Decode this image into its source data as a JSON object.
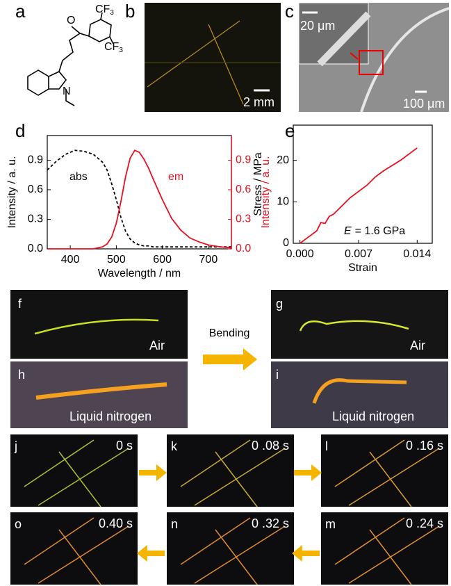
{
  "panels": {
    "a": {
      "label": "a",
      "group": "CF",
      "subscript": "3",
      "oxygen": "O",
      "nitrogen": "N"
    },
    "b": {
      "label": "b",
      "scale": "2 mm"
    },
    "c": {
      "label": "c",
      "inset_scale": "20 μm",
      "scale": "100 μm"
    },
    "d": {
      "label": "d"
    },
    "e": {
      "label": "e"
    },
    "f": {
      "label": "f",
      "text": "Air"
    },
    "g": {
      "label": "g",
      "text": "Air"
    },
    "h": {
      "label": "h",
      "text": "Liquid nitrogen"
    },
    "i": {
      "label": "i",
      "text": "Liquid nitrogen"
    },
    "bending": "Bending",
    "j": {
      "label": "j",
      "time": "0 s"
    },
    "k": {
      "label": "k",
      "time": "0 .08 s"
    },
    "l": {
      "label": "l",
      "time": "0 .16 s"
    },
    "m": {
      "label": "m",
      "time": "0 .24 s"
    },
    "n": {
      "label": "n",
      "time": "0 .32 s"
    },
    "o": {
      "label": "o",
      "time": "0.40 s"
    }
  },
  "chart_data": [
    {
      "type": "line",
      "xlabel": "Wavelength / nm",
      "ylabel": "Intensity / a. u.",
      "y2label": "Intensity / a. u.",
      "y2color": "#e8101e",
      "x": [
        350,
        370,
        390,
        410,
        430,
        450,
        470,
        480,
        490,
        500,
        510,
        520,
        530,
        540,
        550,
        560,
        570,
        580,
        600,
        620,
        640,
        660,
        680,
        700,
        725,
        750
      ],
      "series": [
        {
          "name": "abs",
          "color": "#000000",
          "dash": true,
          "values": [
            0.8,
            0.89,
            0.96,
            1.0,
            0.99,
            0.96,
            0.88,
            0.8,
            0.66,
            0.5,
            0.32,
            0.18,
            0.1,
            0.06,
            0.04,
            0.03,
            0.03,
            0.02,
            0.02,
            0.02,
            0.02,
            0.02,
            0.02,
            0.02,
            0.02,
            0.02
          ]
        },
        {
          "name": "em",
          "color": "#e8101e",
          "axis": "y2",
          "values": [
            0,
            0,
            0,
            0,
            0,
            0,
            0.02,
            0.05,
            0.12,
            0.26,
            0.48,
            0.73,
            0.92,
            1.0,
            0.98,
            0.91,
            0.82,
            0.71,
            0.5,
            0.31,
            0.19,
            0.11,
            0.07,
            0.04,
            0.02,
            0.01
          ]
        }
      ],
      "xlim": [
        350,
        750
      ],
      "xticks": [
        400,
        500,
        600,
        700
      ],
      "ylim": [
        0,
        1.15
      ],
      "yticks": [
        {
          "value": 0,
          "label": "0.0"
        },
        0.3,
        0.6,
        0.9
      ],
      "y2lim": [
        0,
        1.15
      ],
      "y2ticks": [
        {
          "value": 0,
          "label": "0.0"
        },
        0.3,
        0.6,
        0.9
      ]
    },
    {
      "type": "line",
      "xlabel": "Strain",
      "ylabel": "Stress / MPa",
      "annotation": [
        "E",
        "= 1.6 GPa"
      ],
      "x": [
        0,
        0.001,
        0.002,
        0.0025,
        0.003,
        0.0035,
        0.004,
        0.005,
        0.006,
        0.007,
        0.008,
        0.009,
        0.01,
        0.012,
        0.014
      ],
      "series": [
        {
          "color": "#e8101e",
          "values": [
            0,
            1.5,
            3,
            5,
            4.8,
            6.5,
            7,
            9,
            11,
            12.5,
            14,
            16,
            17.5,
            20,
            23
          ]
        }
      ],
      "xlim": [
        -0.0008,
        0.0158
      ],
      "xticks": [
        {
          "value": 0,
          "label": "0.000"
        },
        0.007,
        {
          "value": 0.014,
          "label": "0.014"
        }
      ],
      "ylim": [
        0,
        28.5
      ],
      "yticks": [
        0,
        10,
        20
      ]
    }
  ]
}
